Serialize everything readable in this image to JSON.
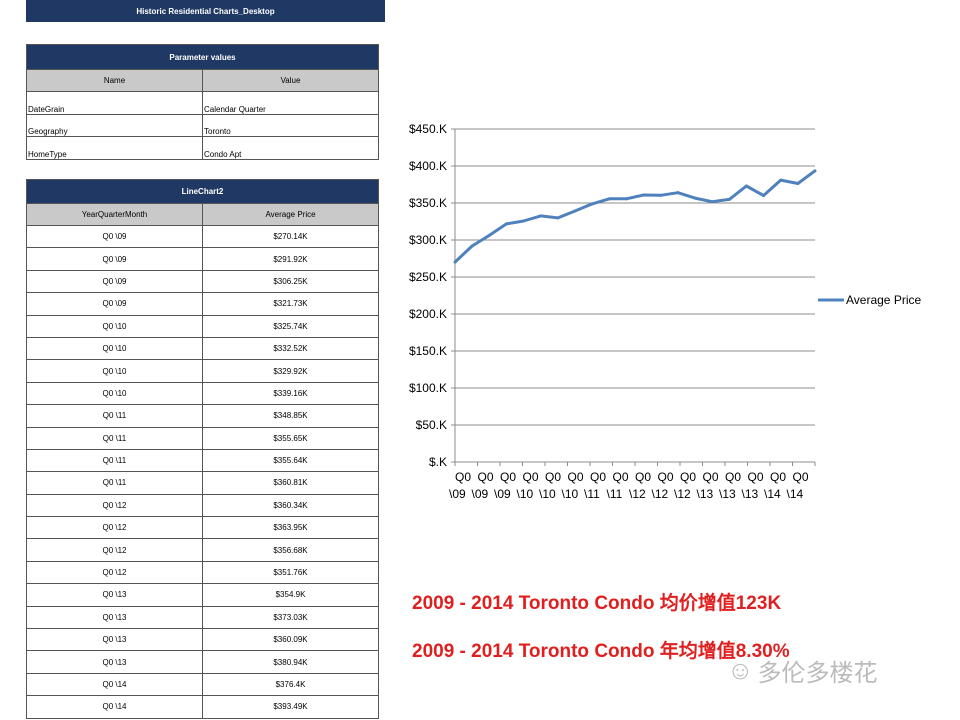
{
  "header": {
    "title": "Historic Residential Charts_Desktop"
  },
  "parameters": {
    "title": "Parameter values",
    "columns": [
      "Name",
      "Value"
    ],
    "rows": [
      [
        "DateGrain",
        "Calendar Quarter"
      ],
      [
        "Geography",
        "Toronto"
      ],
      [
        "HomeType",
        "Condo Apt"
      ]
    ]
  },
  "linechart_table": {
    "title": "LineChart2",
    "columns": [
      "YearQuarterMonth",
      "Average Price"
    ],
    "rows": [
      [
        "Q0 \\09",
        "$270.14K"
      ],
      [
        "Q0 \\09",
        "$291.92K"
      ],
      [
        "Q0 \\09",
        "$306.25K"
      ],
      [
        "Q0 \\09",
        "$321.73K"
      ],
      [
        "Q0 \\10",
        "$325.74K"
      ],
      [
        "Q0 \\10",
        "$332.52K"
      ],
      [
        "Q0 \\10",
        "$329.92K"
      ],
      [
        "Q0 \\10",
        "$339.16K"
      ],
      [
        "Q0 \\11",
        "$348.85K"
      ],
      [
        "Q0 \\11",
        "$355.65K"
      ],
      [
        "Q0 \\11",
        "$355.64K"
      ],
      [
        "Q0 \\11",
        "$360.81K"
      ],
      [
        "Q0 \\12",
        "$360.34K"
      ],
      [
        "Q0 \\12",
        "$363.95K"
      ],
      [
        "Q0 \\12",
        "$356.68K"
      ],
      [
        "Q0 \\12",
        "$351.76K"
      ],
      [
        "Q0 \\13",
        "$354.9K"
      ],
      [
        "Q0 \\13",
        "$373.03K"
      ],
      [
        "Q0 \\13",
        "$360.09K"
      ],
      [
        "Q0 \\13",
        "$380.94K"
      ],
      [
        "Q0 \\14",
        "$376.4K"
      ],
      [
        "Q0 \\14",
        "$393.49K"
      ]
    ]
  },
  "chart_data": {
    "type": "line",
    "title": "",
    "xlabel": "",
    "ylabel": "",
    "categories": [
      "Q0 \\09",
      "Q0 \\09",
      "Q0 \\09",
      "Q0 \\09",
      "Q0 \\10",
      "Q0 \\10",
      "Q0 \\10",
      "Q0 \\10",
      "Q0 \\11",
      "Q0 \\11",
      "Q0 \\11",
      "Q0 \\11",
      "Q0 \\12",
      "Q0 \\12",
      "Q0 \\12",
      "Q0 \\12",
      "Q0 \\13",
      "Q0 \\13",
      "Q0 \\13",
      "Q0 \\13",
      "Q0 \\14",
      "Q0 \\14"
    ],
    "series": [
      {
        "name": "Average Price",
        "color": "#4f81bd",
        "values": [
          270.14,
          291.92,
          306.25,
          321.73,
          325.74,
          332.52,
          329.92,
          339.16,
          348.85,
          355.65,
          355.64,
          360.81,
          360.34,
          363.95,
          356.68,
          351.76,
          354.9,
          373.03,
          360.09,
          380.94,
          376.4,
          393.49
        ]
      }
    ],
    "ylim": [
      0,
      450
    ],
    "yticks": [
      0,
      50,
      100,
      150,
      200,
      250,
      300,
      350,
      400,
      450
    ],
    "ytick_labels": [
      "$.K",
      "$50.K",
      "$100.K",
      "$150.K",
      "$200.K",
      "$250.K",
      "$300.K",
      "$350.K",
      "$400.K",
      "$450.K"
    ],
    "xtick_labels": [
      "Q0 \\09",
      "Q0 \\09",
      "Q0 \\09",
      "Q0 \\10",
      "Q0 \\10",
      "Q0 \\10",
      "Q0 \\11",
      "Q0 \\11",
      "Q0 \\12",
      "Q0 \\12",
      "Q0 \\12",
      "Q0 \\13",
      "Q0 \\13",
      "Q0 \\13",
      "Q0 \\14",
      "Q0 \\14"
    ],
    "grid": true,
    "legend": "right"
  },
  "notes": [
    "2009 - 2014 Toronto Condo 均价增值123K",
    "2009 - 2014 Toronto Condo 年均增值8.30%"
  ],
  "watermark": {
    "text": "多伦多楼花",
    "icon": "wechat-icon"
  }
}
